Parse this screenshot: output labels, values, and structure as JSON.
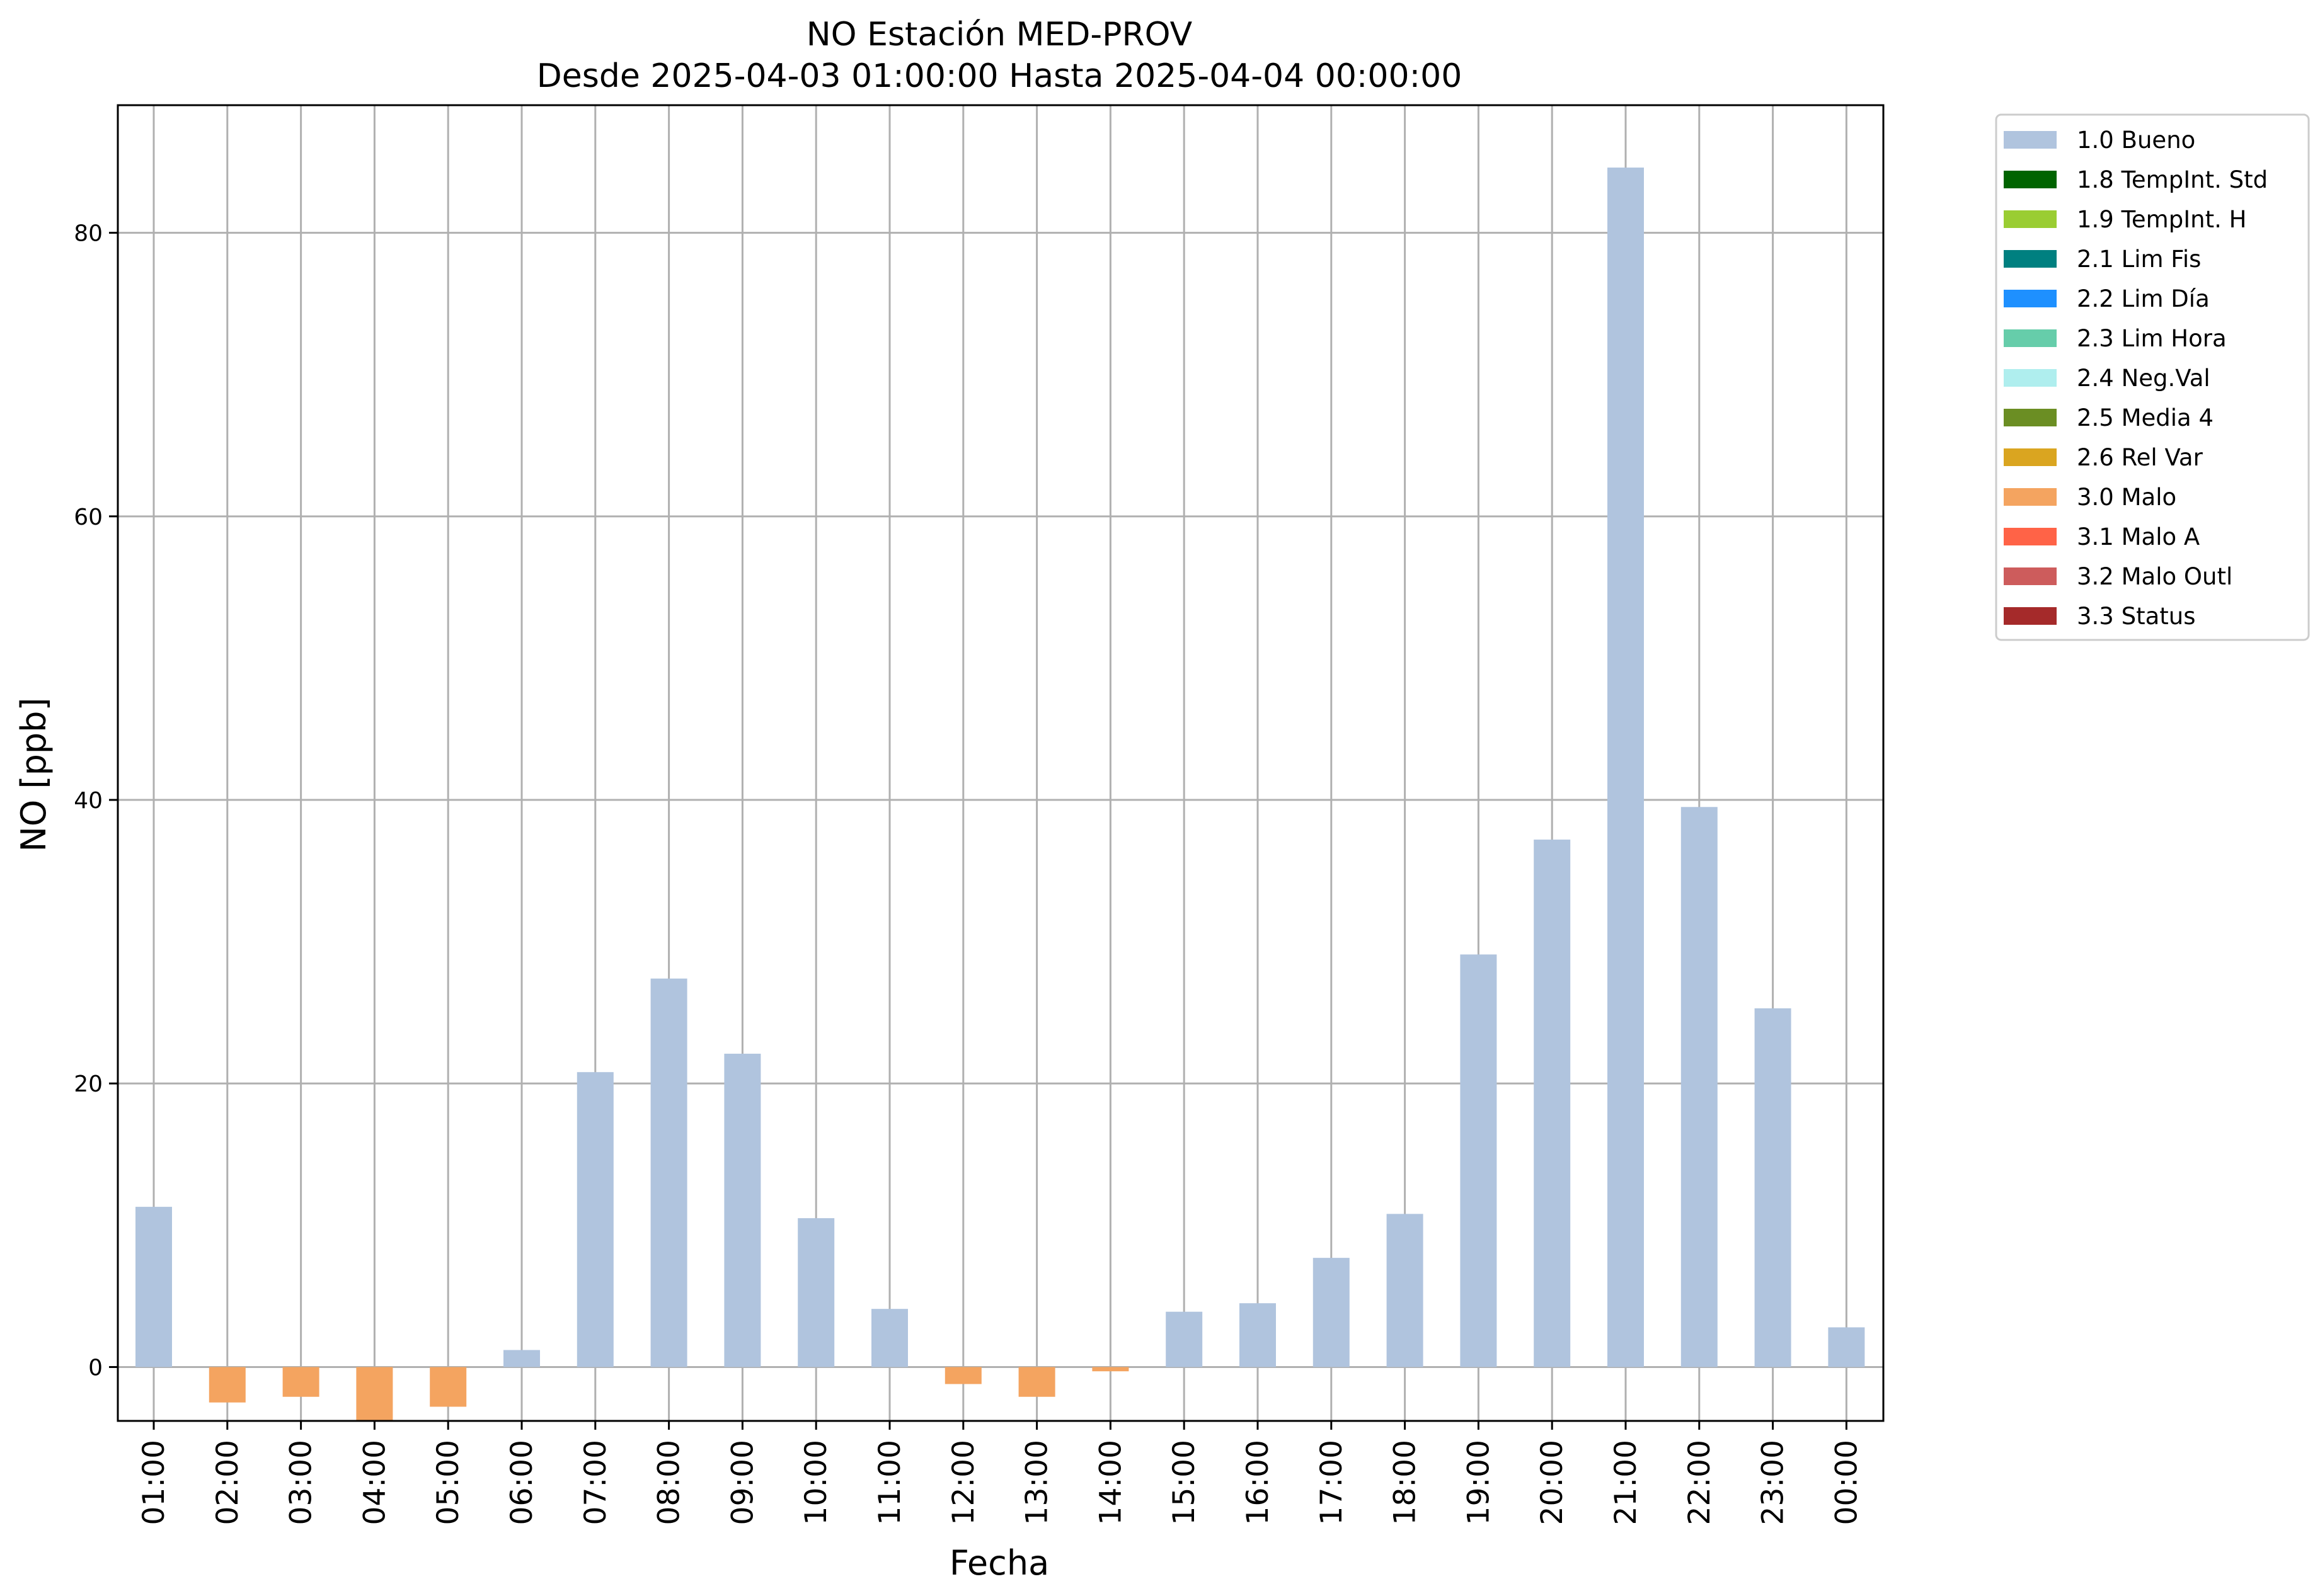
{
  "chart_data": {
    "type": "bar",
    "title": "NO Estación MED-PROV",
    "subtitle": "Desde 2025-04-03 01:00:00 Hasta 2025-04-04 00:00:00",
    "xlabel": "Fecha",
    "ylabel": "NO [ppb]",
    "ylim": [
      -3.8,
      89
    ],
    "yticks": [
      0,
      20,
      40,
      60,
      80
    ],
    "grid": true,
    "legend_position": "outside-top-right",
    "categories": [
      "01:00",
      "02:00",
      "03:00",
      "04:00",
      "05:00",
      "06:00",
      "07:00",
      "08:00",
      "09:00",
      "10:00",
      "11:00",
      "12:00",
      "13:00",
      "14:00",
      "15:00",
      "16:00",
      "17:00",
      "18:00",
      "19:00",
      "20:00",
      "21:00",
      "22:00",
      "23:00",
      "00:00"
    ],
    "values": [
      11.3,
      -2.5,
      -2.1,
      -3.8,
      -2.8,
      1.2,
      20.8,
      27.4,
      22.1,
      10.5,
      4.1,
      -1.2,
      -2.1,
      -0.3,
      3.9,
      4.5,
      7.7,
      10.8,
      29.1,
      37.2,
      84.6,
      39.5,
      25.3,
      2.8
    ],
    "flags": [
      "1.0 Bueno",
      "3.0 Malo",
      "3.0 Malo",
      "3.0 Malo",
      "3.0 Malo",
      "1.0 Bueno",
      "1.0 Bueno",
      "1.0 Bueno",
      "1.0 Bueno",
      "1.0 Bueno",
      "1.0 Bueno",
      "3.0 Malo",
      "3.0 Malo",
      "3.0 Malo",
      "1.0 Bueno",
      "1.0 Bueno",
      "1.0 Bueno",
      "1.0 Bueno",
      "1.0 Bueno",
      "1.0 Bueno",
      "1.0 Bueno",
      "1.0 Bueno",
      "1.0 Bueno",
      "1.0 Bueno"
    ],
    "legend": [
      {
        "label": "1.0 Bueno",
        "color": "#b0c4de"
      },
      {
        "label": "1.8 TempInt. Std",
        "color": "#006400"
      },
      {
        "label": "1.9 TempInt. H",
        "color": "#9acd32"
      },
      {
        "label": "2.1 Lim Fis",
        "color": "#008080"
      },
      {
        "label": "2.2 Lim Día",
        "color": "#1e90ff"
      },
      {
        "label": "2.3 Lim Hora",
        "color": "#66cdaa"
      },
      {
        "label": "2.4 Neg.Val",
        "color": "#afeeee"
      },
      {
        "label": "2.5 Media 4",
        "color": "#6b8e23"
      },
      {
        "label": "2.6 Rel Var",
        "color": "#daa520"
      },
      {
        "label": "3.0 Malo",
        "color": "#f4a460"
      },
      {
        "label": "3.1 Malo A",
        "color": "#ff6347"
      },
      {
        "label": "3.2 Malo Outl",
        "color": "#cd5c5c"
      },
      {
        "label": "3.3 Status",
        "color": "#a52a2a"
      }
    ]
  }
}
